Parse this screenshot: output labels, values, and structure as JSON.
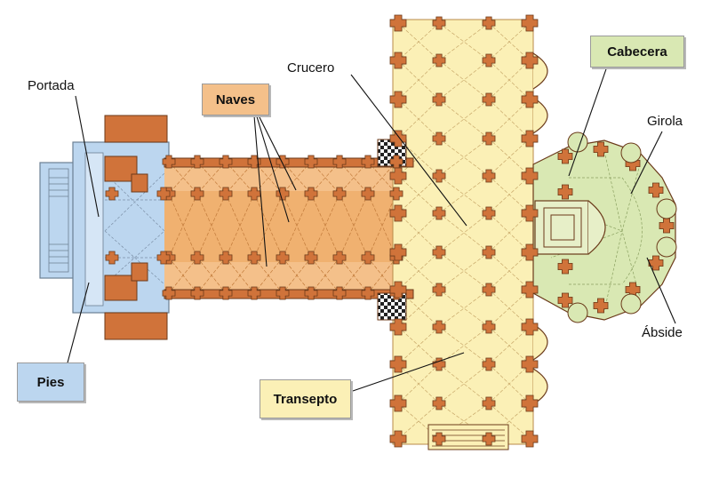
{
  "labels": {
    "naves": "Naves",
    "cabecera": "Cabecera",
    "pies": "Pies",
    "transepto": "Transepto",
    "portada": "Portada",
    "crucero": "Crucero",
    "girola": "Girola",
    "abside": "Ábside"
  },
  "colors": {
    "pies": "#bcd6ef",
    "naves": "#f4c08a",
    "transepto": "#fbf0b6",
    "cabecera": "#d9e8b3",
    "pillar": "#d0733a",
    "wall_outline": "#6b3a1a",
    "rib": "#8a6a40"
  }
}
